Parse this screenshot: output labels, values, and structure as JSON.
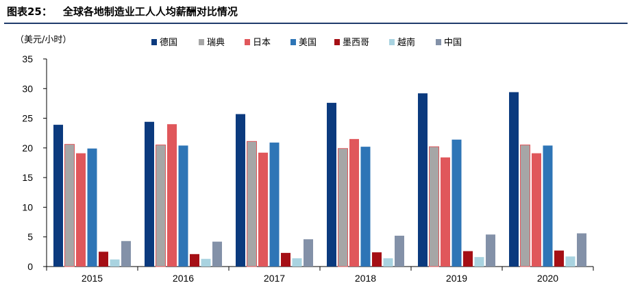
{
  "figure": {
    "number": "图表25：",
    "title": "全球各地制造业工人人均薪酬对比情况"
  },
  "chart_data": {
    "type": "bar",
    "ylabel": "（美元/小时）",
    "ylim": [
      0,
      35
    ],
    "yticks": [
      0,
      5,
      10,
      15,
      20,
      25,
      30,
      35
    ],
    "categories": [
      "2015",
      "2016",
      "2017",
      "2018",
      "2019",
      "2020"
    ],
    "legend_position": "top",
    "grid": false,
    "series": [
      {
        "name": "德国",
        "color": "#0b3a7e",
        "values": [
          23.9,
          24.4,
          25.7,
          27.6,
          29.2,
          29.4
        ]
      },
      {
        "name": "瑞典",
        "color": "#a6a6a6",
        "values": [
          20.6,
          20.5,
          21.1,
          19.9,
          20.2,
          20.5
        ]
      },
      {
        "name": "日本",
        "color": "#e0575b",
        "values": [
          19.1,
          24.0,
          19.2,
          21.5,
          18.4,
          19.1
        ]
      },
      {
        "name": "美国",
        "color": "#2e75b6",
        "values": [
          19.9,
          20.4,
          20.9,
          20.2,
          21.4,
          20.4
        ]
      },
      {
        "name": "墨西哥",
        "color": "#a50f15",
        "values": [
          2.5,
          2.1,
          2.3,
          2.4,
          2.6,
          2.7
        ]
      },
      {
        "name": "越南",
        "color": "#a9d3e0",
        "values": [
          1.2,
          1.3,
          1.4,
          1.4,
          1.6,
          1.7
        ]
      },
      {
        "name": "中国",
        "color": "#8391a8",
        "values": [
          4.3,
          4.2,
          4.6,
          5.2,
          5.4,
          5.6
        ]
      }
    ]
  }
}
